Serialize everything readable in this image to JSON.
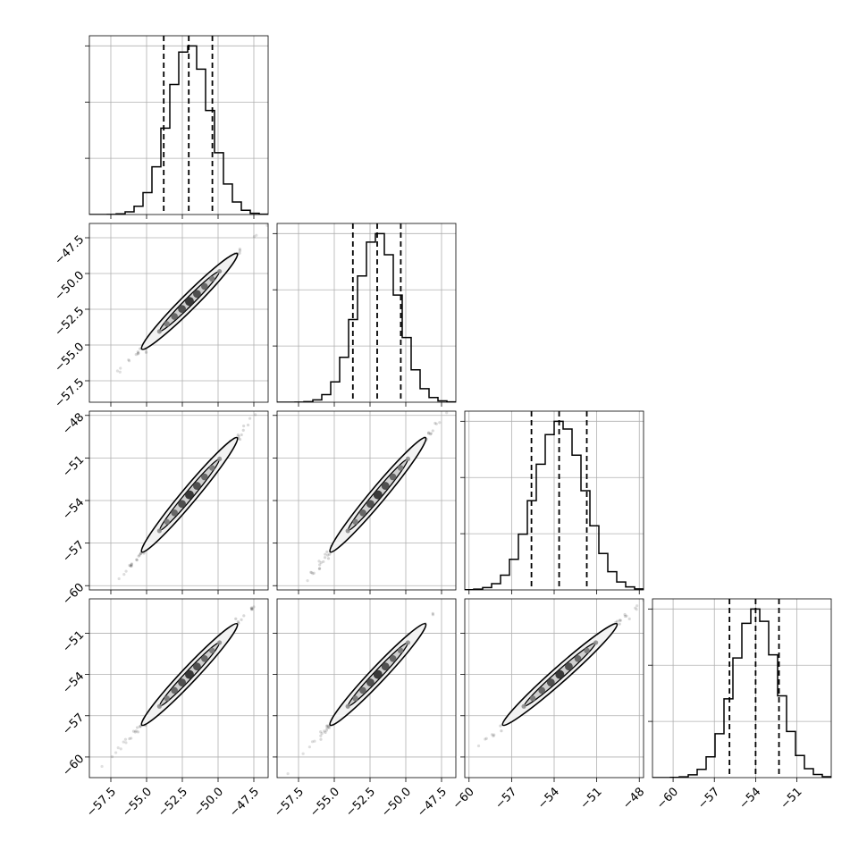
{
  "chart_data": {
    "type": "scatter",
    "title": "",
    "parameters": [
      {
        "mean": -52.0,
        "sd": 1.45,
        "q16": -53.8,
        "q50": -52.05,
        "q84": -50.4,
        "range": [
          -59.0,
          -46.5
        ],
        "ticks": [
          -57.5,
          -55.0,
          -52.5,
          -50.0,
          -47.5
        ],
        "tick_labels": [
          "−57.5",
          "−55.0",
          "−52.5",
          "−50.0",
          "−47.5"
        ]
      },
      {
        "mean": -51.95,
        "sd": 1.45,
        "q16": -53.7,
        "q50": -52.0,
        "q84": -50.35,
        "range": [
          -59.0,
          -46.5
        ],
        "ticks": [
          -57.5,
          -55.0,
          -52.5,
          -50.0,
          -47.5
        ],
        "tick_labels": [
          "−57.5",
          "−55.0",
          "−52.5",
          "−50.0",
          "−47.5"
        ]
      },
      {
        "mean": -53.6,
        "sd": 1.75,
        "q16": -55.6,
        "q50": -53.65,
        "q84": -51.7,
        "range": [
          -60.3,
          -47.7
        ],
        "ticks": [
          -60,
          -57,
          -54,
          -51,
          -48
        ],
        "tick_labels": [
          "−60",
          "−57",
          "−54",
          "−51",
          "−48"
        ]
      },
      {
        "mean": -54.0,
        "sd": 1.6,
        "q16": -55.9,
        "q50": -54.0,
        "q84": -52.3,
        "range": [
          -61.5,
          -48.5
        ],
        "ticks": [
          -60,
          -57,
          -54,
          -51
        ],
        "tick_labels": [
          "−60",
          "−57",
          "−54",
          "−51"
        ]
      }
    ],
    "grid": true,
    "legend": "none"
  }
}
